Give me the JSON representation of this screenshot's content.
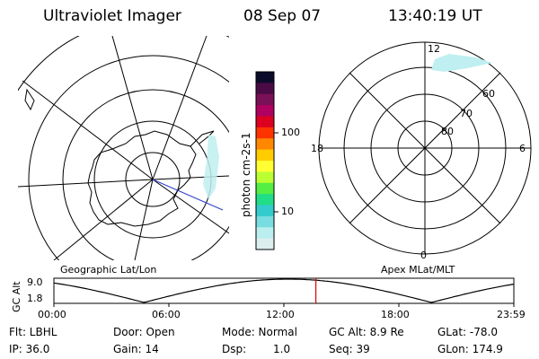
{
  "header": {
    "title": "Ultraviolet Imager",
    "date": "08 Sep 07",
    "time": "13:40:19 UT"
  },
  "colorbar": {
    "unit_label": "photon cm-2s-1",
    "ticks": [
      "100",
      "10"
    ],
    "colors": [
      "#0b0b2a",
      "#4a0b45",
      "#7a1055",
      "#b00060",
      "#dd0020",
      "#ff3300",
      "#ff8800",
      "#ffcc00",
      "#ffff33",
      "#bbff33",
      "#55ee44",
      "#22dd88",
      "#33cccc",
      "#77dde0",
      "#bbeeee",
      "#ddeeee"
    ]
  },
  "left_map": {
    "label": "Geographic Lat/Lon"
  },
  "right_map": {
    "label": "Apex MLat/MLT",
    "mlt_labels": {
      "top": "12",
      "left": "18",
      "right": "6",
      "bottom": "0"
    },
    "mlat_labels": [
      "60",
      "70",
      "80"
    ]
  },
  "altitude_plot": {
    "ylabel": "GC Alt",
    "yticks": [
      "9.0",
      "1.8"
    ],
    "xticks": [
      "00:00",
      "06:00",
      "12:00",
      "18:00",
      "23:59"
    ],
    "current_time_hours": 13.67,
    "marker_color": "#dd0000"
  },
  "footer": {
    "filter": "Flt: LBHL",
    "door": "Door: Open",
    "mode": "Mode: Normal",
    "gc_alt": "GC Alt: 8.9 Re",
    "glat": "GLat: -78.0",
    "ip": "IP: 36.0",
    "gain": "Gain: 14",
    "dsp_label": "Dsp:",
    "dsp_value": "1.0",
    "seq": "Seq: 39",
    "glon": "GLon: 174.9"
  }
}
